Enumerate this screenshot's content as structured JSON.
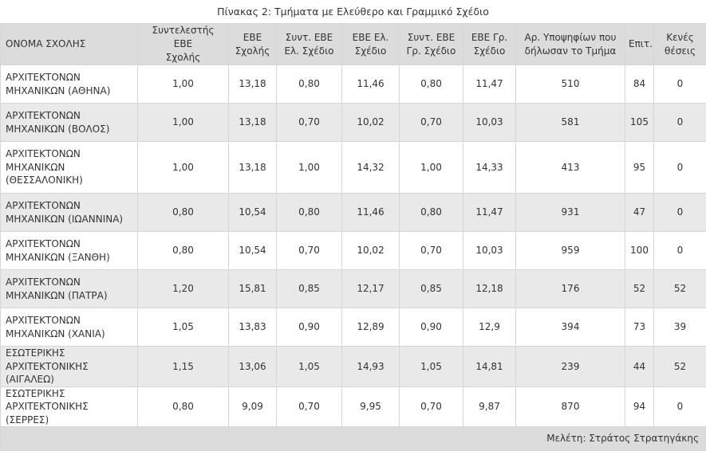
{
  "caption": "Πίνακας 2: Τμήματα με Ελεύθερο και Γραμμικό Σχέδιο",
  "headers": [
    [
      "ΟΝΟΜΑ ΣΧΟΛΗΣ"
    ],
    [
      "Συντελεστής ΕΒΕ",
      "Σχολής"
    ],
    [
      "ΕΒΕ",
      "Σχολής"
    ],
    [
      "Συντ. ΕΒΕ",
      "Ελ. Σχέδιο"
    ],
    [
      "ΕΒΕ Ελ.",
      "Σχέδιο"
    ],
    [
      "Συντ. ΕΒΕ",
      "Γρ. Σχέδιο"
    ],
    [
      "ΕΒΕ Γρ.",
      "Σχέδιο"
    ],
    [
      "Αρ. Υποψηφίων που",
      "δήλωσαν το Τμήμα"
    ],
    [
      "Επιτ."
    ],
    [
      "Κενές",
      "θέσεις"
    ]
  ],
  "rows": [
    {
      "name": [
        "ΑΡΧΙΤΕΚΤΟΝΩΝ",
        "ΜΗΧΑΝΙΚΩΝ (ΑΘΗΝΑ)"
      ],
      "cells": [
        "1,00",
        "13,18",
        "0,80",
        "11,46",
        "0,80",
        "11,47",
        "510",
        "84",
        "0"
      ]
    },
    {
      "name": [
        "ΑΡΧΙΤΕΚΤΟΝΩΝ",
        "ΜΗΧΑΝΙΚΩΝ (ΒΟΛΟΣ)"
      ],
      "cells": [
        "1,00",
        "13,18",
        "0,70",
        "10,02",
        "0,70",
        "10,03",
        "581",
        "105",
        "0"
      ]
    },
    {
      "name": [
        "ΑΡΧΙΤΕΚΤΟΝΩΝ",
        "ΜΗΧΑΝΙΚΩΝ",
        "(ΘΕΣΣΑΛΟΝΙΚΗ)"
      ],
      "cells": [
        "1,00",
        "13,18",
        "1,00",
        "14,32",
        "1,00",
        "14,33",
        "413",
        "95",
        "0"
      ]
    },
    {
      "name": [
        "ΑΡΧΙΤΕΚΤΟΝΩΝ",
        "ΜΗΧΑΝΙΚΩΝ (ΙΩΑΝΝΙΝΑ)"
      ],
      "cells": [
        "0,80",
        "10,54",
        "0,80",
        "11,46",
        "0,80",
        "11,47",
        "931",
        "47",
        "0"
      ]
    },
    {
      "name": [
        "ΑΡΧΙΤΕΚΤΟΝΩΝ",
        "ΜΗΧΑΝΙΚΩΝ (ΞΑΝΘΗ)"
      ],
      "cells": [
        "0,80",
        "10,54",
        "0,70",
        "10,02",
        "0,70",
        "10,03",
        "959",
        "100",
        "0"
      ]
    },
    {
      "name": [
        "ΑΡΧΙΤΕΚΤΟΝΩΝ",
        "ΜΗΧΑΝΙΚΩΝ (ΠΑΤΡΑ)"
      ],
      "cells": [
        "1,20",
        "15,81",
        "0,85",
        "12,17",
        "0,85",
        "12,18",
        "176",
        "52",
        "52"
      ]
    },
    {
      "name": [
        "ΑΡΧΙΤΕΚΤΟΝΩΝ",
        "ΜΗΧΑΝΙΚΩΝ (ΧΑΝΙΑ)"
      ],
      "cells": [
        "1,05",
        "13,83",
        "0,90",
        "12,89",
        "0,90",
        "12,9",
        "394",
        "73",
        "39"
      ]
    },
    {
      "name": [
        "ΕΣΩΤΕΡΙΚΗΣ",
        "ΑΡΧΙΤΕΚΤΟΝΙΚΗΣ (ΑΙΓΑΛΕΩ)"
      ],
      "cells": [
        "1,15",
        "13,06",
        "1,05",
        "14,93",
        "1,05",
        "14,81",
        "239",
        "44",
        "52"
      ]
    },
    {
      "name": [
        "ΕΣΩΤΕΡΙΚΗΣ",
        "ΑΡΧΙΤΕΚΤΟΝΙΚΗΣ (ΣΕΡΡΕΣ)"
      ],
      "cells": [
        "0,80",
        "9,09",
        "0,70",
        "9,95",
        "0,70",
        "9,87",
        "870",
        "94",
        "0"
      ]
    }
  ],
  "footer": "Μελέτη: Στράτος Στρατηγάκης"
}
